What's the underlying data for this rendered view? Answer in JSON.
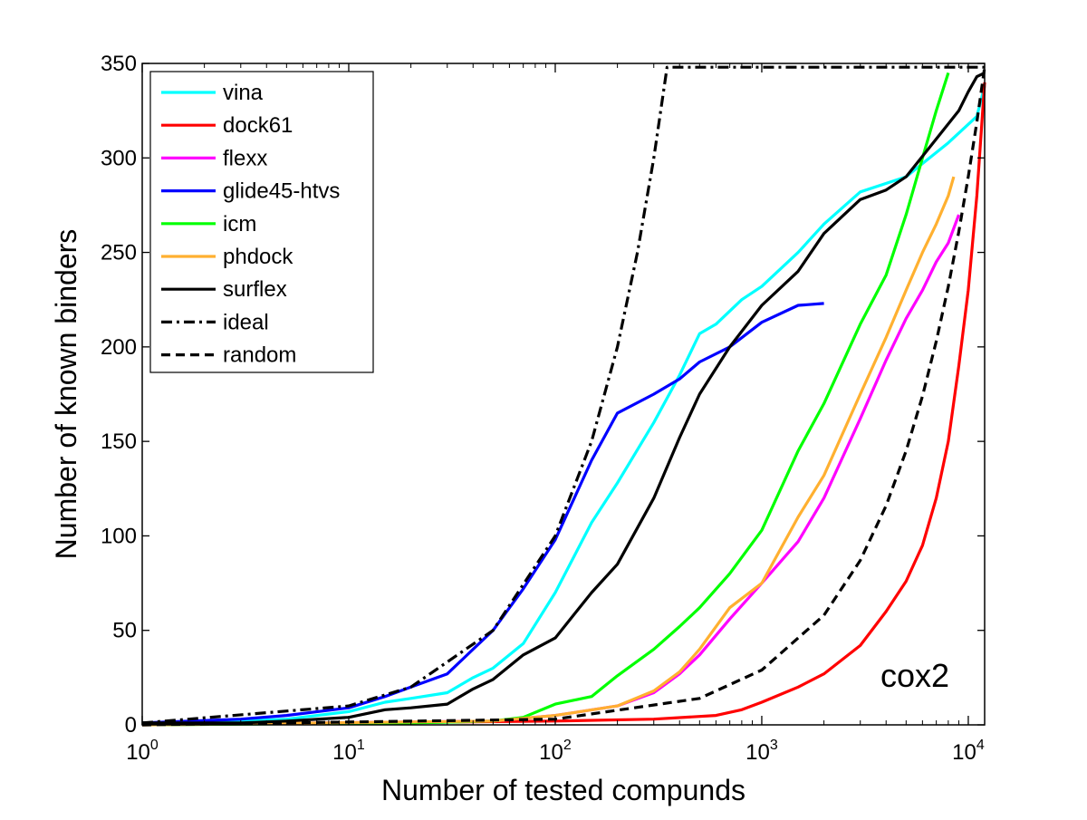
{
  "chart_data": {
    "type": "line",
    "title": "",
    "xlabel": "Number of tested compunds",
    "ylabel": "Number of known binders",
    "annotation": "cox2",
    "x_scale": "log",
    "xlim": [
      1,
      12000
    ],
    "ylim": [
      0,
      350
    ],
    "x_ticks": [
      1,
      10,
      100,
      1000,
      10000
    ],
    "x_tick_labels": [
      {
        "base": "10",
        "exp": "0"
      },
      {
        "base": "10",
        "exp": "1"
      },
      {
        "base": "10",
        "exp": "2"
      },
      {
        "base": "10",
        "exp": "3"
      },
      {
        "base": "10",
        "exp": "4"
      }
    ],
    "y_ticks": [
      0,
      50,
      100,
      150,
      200,
      250,
      300,
      350
    ],
    "y_tick_labels": [
      "0",
      "50",
      "100",
      "150",
      "200",
      "250",
      "300",
      "350"
    ],
    "grid": false,
    "legend_position": "top-left",
    "series": [
      {
        "name": "vina",
        "color": "#00ffff",
        "dash": "solid",
        "x": [
          1,
          3,
          5,
          10,
          15,
          20,
          30,
          40,
          50,
          70,
          100,
          150,
          200,
          300,
          400,
          500,
          600,
          800,
          1000,
          1500,
          2000,
          3000,
          5000,
          8000,
          11000,
          12000
        ],
        "y": [
          1,
          2,
          3,
          7,
          12,
          14,
          17,
          25,
          30,
          43,
          70,
          107,
          128,
          160,
          185,
          207,
          212,
          225,
          232,
          250,
          265,
          282,
          290,
          308,
          322,
          338
        ]
      },
      {
        "name": "dock61",
        "color": "#ff0000",
        "dash": "solid",
        "x": [
          1,
          100,
          300,
          600,
          800,
          1000,
          1500,
          2000,
          3000,
          4000,
          5000,
          6000,
          7000,
          8000,
          9000,
          10000,
          11000,
          12000
        ],
        "y": [
          0,
          2,
          3,
          5,
          8,
          12,
          20,
          27,
          42,
          60,
          76,
          95,
          120,
          150,
          190,
          230,
          280,
          340
        ]
      },
      {
        "name": "flexx",
        "color": "#ff00ff",
        "dash": "solid",
        "x": [
          1,
          50,
          100,
          200,
          300,
          400,
          500,
          700,
          1000,
          1500,
          2000,
          3000,
          4000,
          5000,
          6000,
          7000,
          8000,
          9000
        ],
        "y": [
          0,
          2,
          5,
          10,
          17,
          27,
          37,
          56,
          75,
          97,
          120,
          162,
          193,
          215,
          230,
          245,
          255,
          270
        ]
      },
      {
        "name": "glide45-htvs",
        "color": "#0000ff",
        "dash": "solid",
        "x": [
          1,
          3,
          5,
          10,
          15,
          20,
          30,
          40,
          50,
          70,
          100,
          150,
          200,
          300,
          400,
          500,
          700,
          1000,
          1500,
          2000
        ],
        "y": [
          1,
          3,
          5,
          9,
          15,
          20,
          27,
          40,
          50,
          72,
          98,
          140,
          165,
          175,
          183,
          192,
          200,
          213,
          222,
          223
        ]
      },
      {
        "name": "icm",
        "color": "#00ff00",
        "dash": "solid",
        "x": [
          1,
          20,
          50,
          70,
          100,
          150,
          200,
          300,
          400,
          500,
          700,
          1000,
          1500,
          2000,
          3000,
          4000,
          5000,
          6000,
          7000,
          8000
        ],
        "y": [
          0,
          1,
          2,
          4,
          11,
          15,
          26,
          40,
          52,
          62,
          80,
          103,
          145,
          170,
          212,
          238,
          270,
          300,
          325,
          345
        ]
      },
      {
        "name": "phdock",
        "color": "#ffb030",
        "dash": "solid",
        "x": [
          1,
          50,
          100,
          200,
          300,
          400,
          500,
          700,
          1000,
          1500,
          2000,
          3000,
          4000,
          5000,
          6000,
          7000,
          8000,
          8500
        ],
        "y": [
          0,
          2,
          5,
          10,
          18,
          28,
          40,
          62,
          75,
          110,
          132,
          175,
          205,
          230,
          250,
          265,
          280,
          290
        ]
      },
      {
        "name": "surflex",
        "color": "#000000",
        "dash": "solid",
        "x": [
          1,
          3,
          5,
          10,
          15,
          20,
          30,
          40,
          50,
          70,
          100,
          150,
          200,
          300,
          400,
          500,
          700,
          1000,
          1500,
          2000,
          3000,
          4000,
          5000,
          7000,
          9000,
          10000,
          11000,
          12000
        ],
        "y": [
          1,
          1,
          2,
          4,
          8,
          9,
          11,
          19,
          24,
          37,
          46,
          70,
          85,
          120,
          152,
          175,
          200,
          222,
          240,
          260,
          278,
          283,
          290,
          310,
          325,
          335,
          343,
          345
        ]
      },
      {
        "name": "ideal",
        "color": "#000000",
        "dash": "dashdot",
        "x": [
          1,
          10,
          20,
          50,
          100,
          150,
          200,
          250,
          300,
          348,
          12000
        ],
        "y": [
          1,
          10,
          20,
          50,
          100,
          150,
          200,
          250,
          300,
          348,
          348
        ]
      },
      {
        "name": "random",
        "color": "#000000",
        "dash": "dashed",
        "x": [
          1,
          100,
          500,
          1000,
          2000,
          3000,
          4000,
          5000,
          6000,
          7000,
          8000,
          9000,
          10000,
          11000,
          12000
        ],
        "y": [
          0,
          3,
          14,
          29,
          58,
          87,
          116,
          145,
          174,
          203,
          232,
          261,
          290,
          319,
          348
        ]
      }
    ]
  }
}
